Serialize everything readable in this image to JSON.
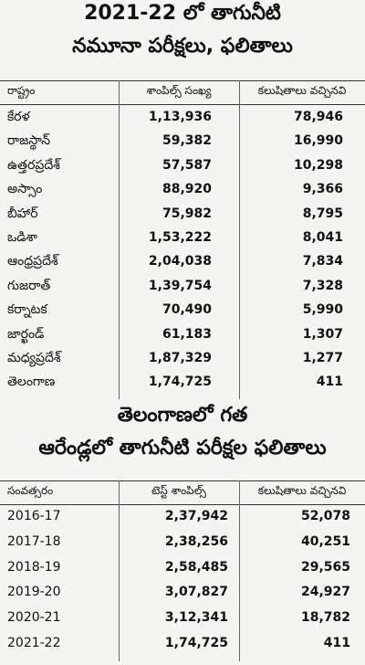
{
  "section1": {
    "title_lines": [
      "2021-22 లో తాగునీటి",
      "నమూనా పరీక్షలు, ఫలితాలు"
    ],
    "table": {
      "headers": [
        "రాష్ట్రం",
        "శాంపిల్స్ సంఖ్య",
        "కలుషితాలు వచ్చినవి"
      ],
      "rows": [
        [
          "కేరళ",
          "1,13,936",
          "78,946"
        ],
        [
          "రాజస్థాన్",
          "59,382",
          "16,990"
        ],
        [
          "ఉత్తరప్రదేశ్",
          "57,587",
          "10,298"
        ],
        [
          "అస్సాం",
          "88,920",
          "9,366"
        ],
        [
          "బీహార్",
          "75,982",
          "8,795"
        ],
        [
          "ఒడిశా",
          "1,53,222",
          "8,041"
        ],
        [
          "ఆంధ్రప్రదేశ్",
          "2,04,038",
          "7,834"
        ],
        [
          "గుజరాత్",
          "1,39,754",
          "7,328"
        ],
        [
          "కర్నాటక",
          "70,490",
          "5,990"
        ],
        [
          "జార్ఖండ్",
          "61,183",
          "1,307"
        ],
        [
          "మధ్యప్రదేశ్",
          "1,87,329",
          "1,277"
        ],
        [
          "తెలంగాణ",
          "1,74,725",
          "411"
        ]
      ]
    }
  },
  "section2": {
    "title_lines": [
      "తెలంగాణలో గత",
      "ఆరేండ్లలో తాగునీటి పరీక్షల ఫలితాలు"
    ],
    "table": {
      "headers": [
        "సంవత్సరం",
        "టెస్ట్ శాంపిల్స్",
        "కలుషితాలు వచ్చినవి"
      ],
      "rows": [
        [
          "2016-17",
          "2,37,942",
          "52,078"
        ],
        [
          "2017-18",
          "2,38,256",
          "40,251"
        ],
        [
          "2018-19",
          "2,58,485",
          "29,565"
        ],
        [
          "2019-20",
          "3,07,827",
          "24,927"
        ],
        [
          "2020-21",
          "3,12,341",
          "18,782"
        ],
        [
          "2021-22",
          "1,74,725",
          "411"
        ]
      ]
    }
  }
}
